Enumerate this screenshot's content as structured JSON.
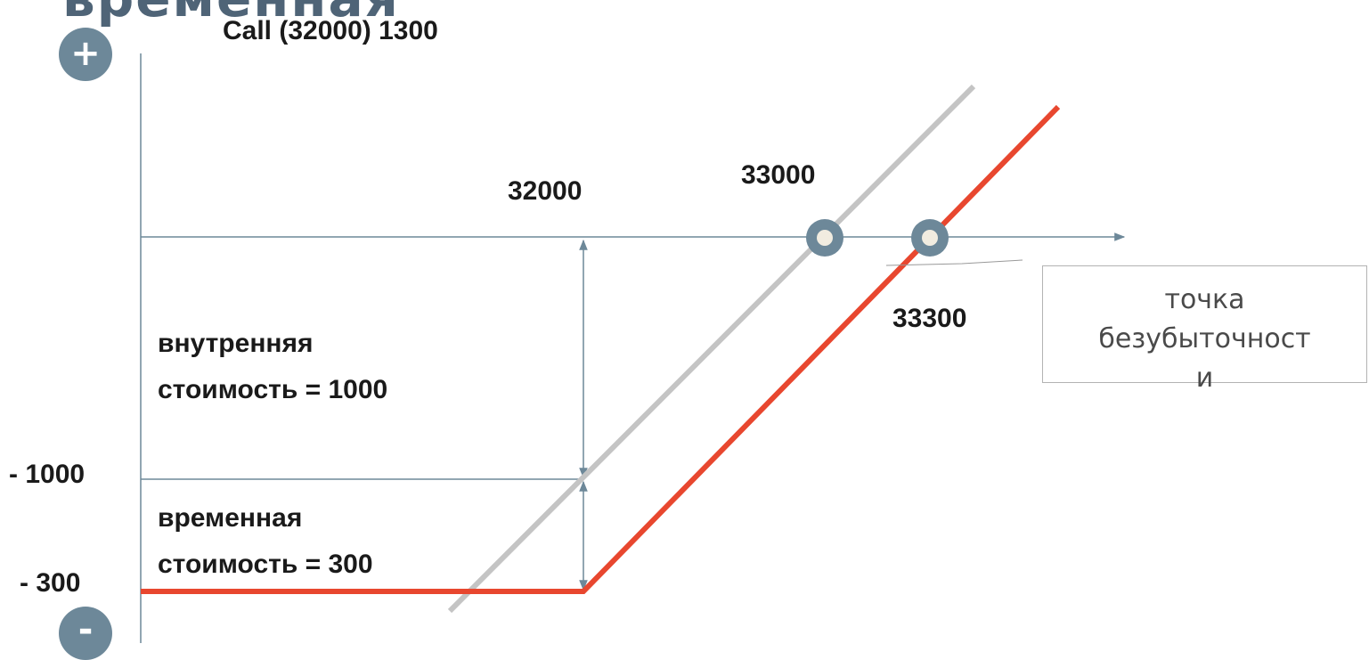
{
  "header": {
    "partial_title": "временная",
    "subtitle": "Call (32000) 1300"
  },
  "buttons": {
    "plus": "+",
    "minus": "-"
  },
  "labels": {
    "strike": "32000",
    "x_break_intrinsic": "33000",
    "x_breakeven": "33300",
    "y_minus_1000": "- 1000",
    "y_minus_300": "- 300",
    "intrinsic_line1": "внутренняя",
    "intrinsic_line2": "стоимость = 1000",
    "time_line1": "временная",
    "time_line2": "стоимость = 300"
  },
  "callout": {
    "line1": "точка",
    "line2": "безубыточност",
    "line3": "и"
  },
  "colors": {
    "payoff_line": "#e8472f",
    "intrinsic_line": "#c4c4c4",
    "axis": "#6d8899",
    "marker": "#6d8899",
    "marker_center": "#f1ece0",
    "accent_title": "#4f6477"
  }
}
